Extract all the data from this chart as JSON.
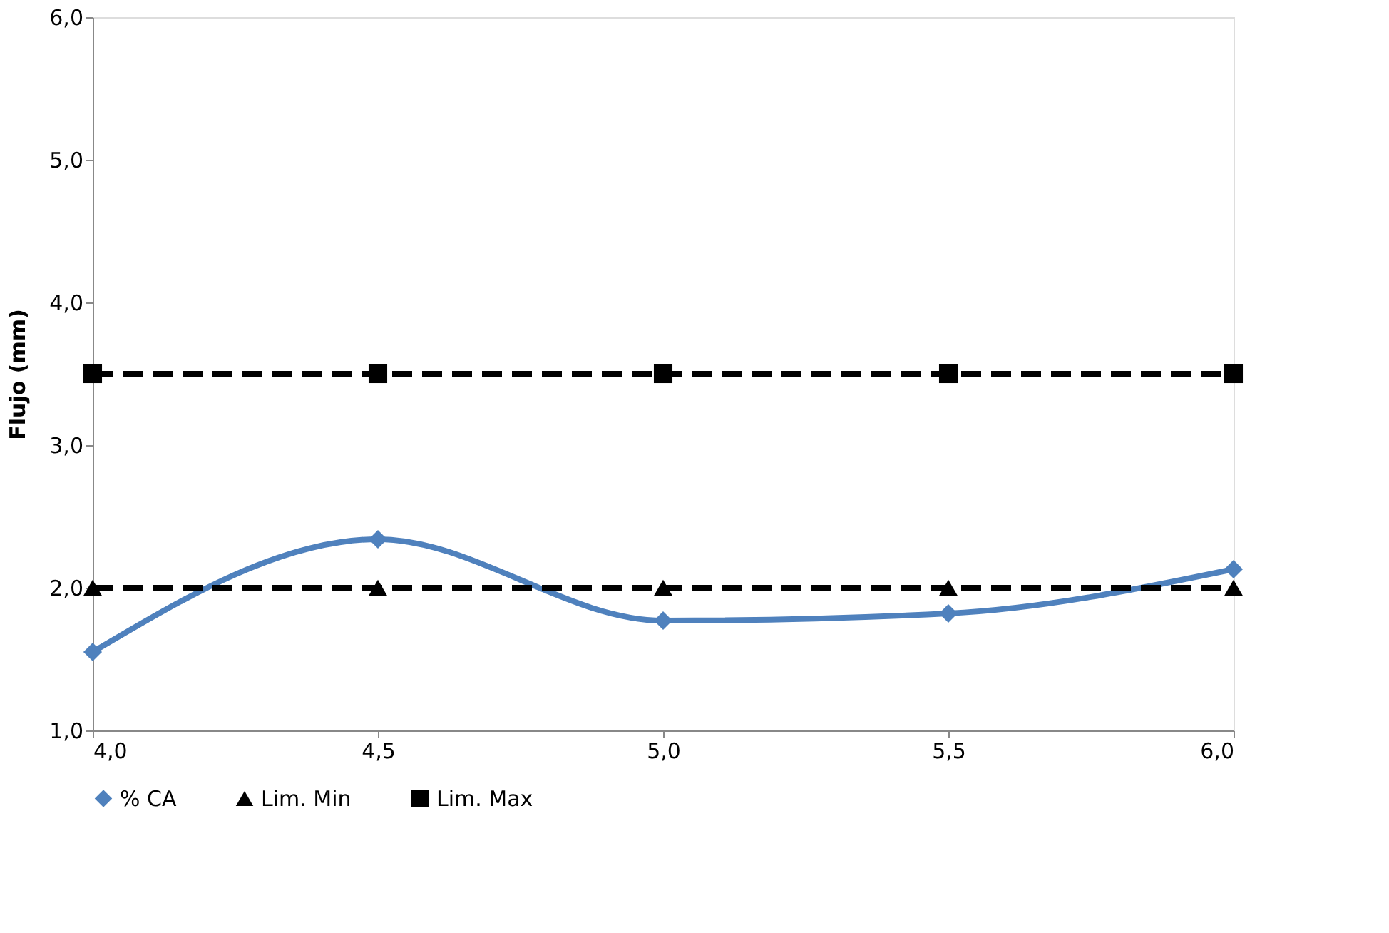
{
  "chart_data": {
    "type": "line",
    "ylabel": "Flujo (mm)",
    "x": [
      4.0,
      4.5,
      5.0,
      5.5,
      6.0
    ],
    "series": [
      {
        "name": "% CA",
        "color": "#4f81bd",
        "values": [
          1.55,
          2.34,
          1.77,
          1.82,
          2.13
        ],
        "marker": "diamond",
        "line_style": "solid"
      },
      {
        "name": "Lim. Min",
        "color": "#000000",
        "values": [
          2.0,
          2.0,
          2.0,
          2.0,
          2.0
        ],
        "marker": "triangle",
        "line_style": "dashed"
      },
      {
        "name": "Lim. Max",
        "color": "#000000",
        "values": [
          3.5,
          3.5,
          3.5,
          3.5,
          3.5
        ],
        "marker": "square",
        "line_style": "dashed"
      }
    ],
    "xlim": [
      4.0,
      6.0
    ],
    "xticks": [
      {
        "value": 4.0,
        "label": "4,0"
      },
      {
        "value": 4.5,
        "label": "4,5"
      },
      {
        "value": 5.0,
        "label": "5,0"
      },
      {
        "value": 5.5,
        "label": "5,5"
      },
      {
        "value": 6.0,
        "label": "6,0"
      }
    ],
    "ylim": [
      1.0,
      6.0
    ],
    "yticks": [
      {
        "value": 1.0,
        "label": "1,0"
      },
      {
        "value": 2.0,
        "label": "2,0"
      },
      {
        "value": 3.0,
        "label": "3,0"
      },
      {
        "value": 4.0,
        "label": "4,0"
      },
      {
        "value": 5.0,
        "label": "5,0"
      },
      {
        "value": 6.0,
        "label": "6,0"
      }
    ],
    "grid": false,
    "legend": "bottom"
  }
}
